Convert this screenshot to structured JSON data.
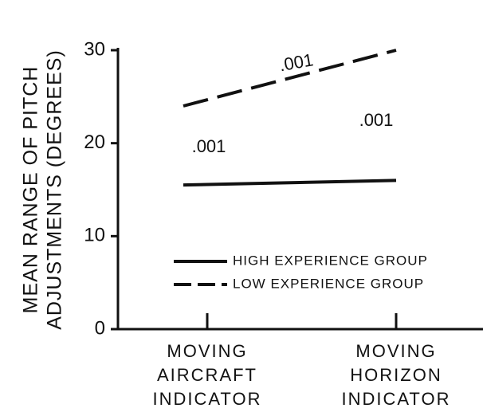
{
  "chart_data": {
    "type": "line",
    "y_label_lines": [
      "MEAN RANGE OF PITCH",
      "ADJUSTMENTS (DEGREES)"
    ],
    "categories": [
      "MOVING AIRCRAFT INDICATOR",
      "MOVING HORIZON INDICATOR"
    ],
    "series": [
      {
        "name": "HIGH EXPERIENCE GROUP",
        "color": "#111111",
        "dash": "solid",
        "values": [
          15.5,
          16
        ]
      },
      {
        "name": "LOW EXPERIENCE GROUP",
        "color": "#111111",
        "dash": "dashed",
        "values": [
          24,
          30
        ]
      }
    ],
    "ylim": [
      0,
      30
    ],
    "yticks": [
      0,
      10,
      20,
      30
    ],
    "annotations": [
      ".001",
      ".001",
      ".001"
    ]
  }
}
